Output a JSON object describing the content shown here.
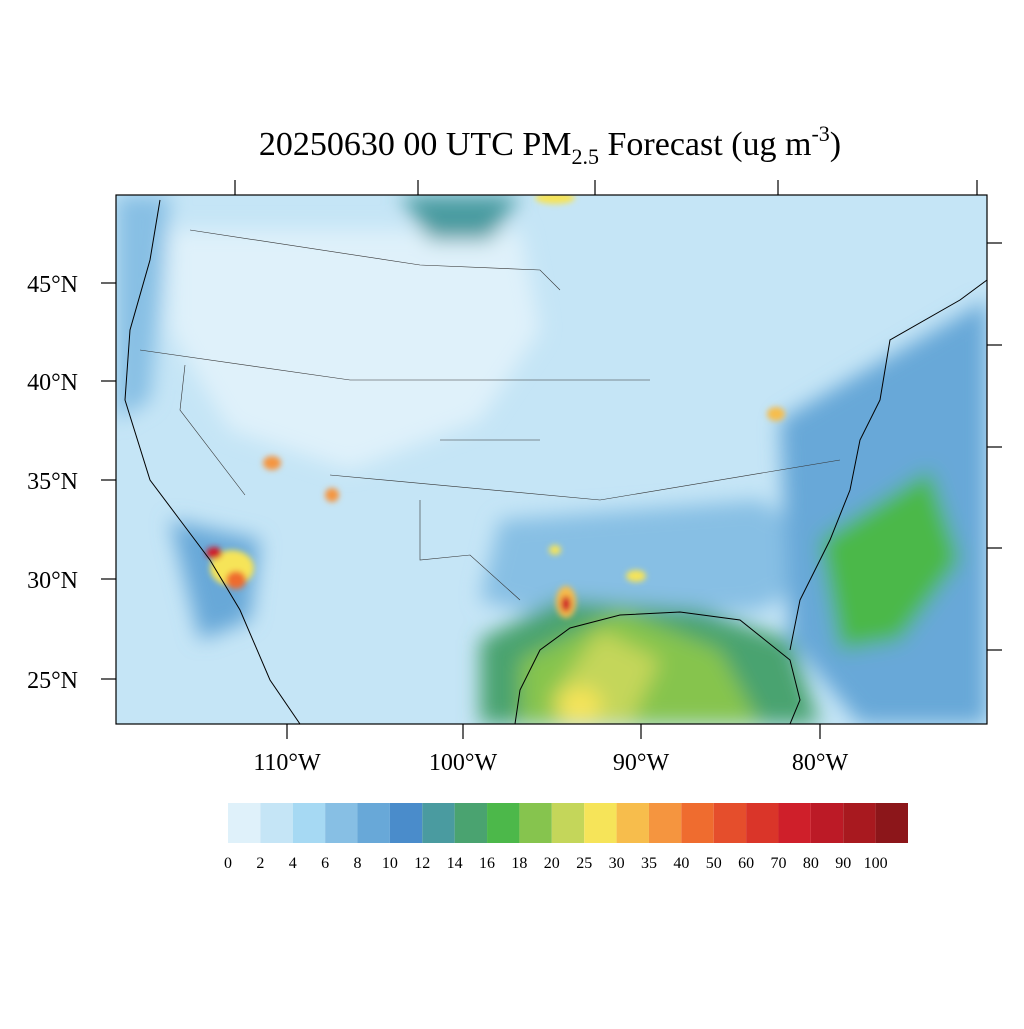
{
  "title": {
    "main": "20250630 00 UTC PM",
    "sub": "2.5",
    "middle": " Forecast (ug m",
    "sup": "-3",
    "end": ")"
  },
  "lat_labels": [
    "45°N",
    "40°N",
    "35°N",
    "30°N",
    "25°N"
  ],
  "lon_labels": [
    "110°W",
    "100°W",
    "90°W",
    "80°W"
  ],
  "colorbar": {
    "labels": [
      "0",
      "2",
      "4",
      "6",
      "8",
      "10",
      "12",
      "14",
      "16",
      "18",
      "20",
      "25",
      "30",
      "35",
      "40",
      "50",
      "60",
      "70",
      "80",
      "90",
      "100"
    ],
    "colors": [
      "#dff1fa",
      "#c5e5f6",
      "#a6d9f3",
      "#87bfe4",
      "#68a8d8",
      "#4a8ccb",
      "#4a9ba0",
      "#4aa370",
      "#4cb84a",
      "#86c44e",
      "#c4d65a",
      "#f6e459",
      "#f7bd4c",
      "#f5953f",
      "#ef6c2f",
      "#e54e2c",
      "#da3529",
      "#cf1f2a",
      "#bc1a26",
      "#a8191f",
      "#8c161a"
    ]
  }
}
